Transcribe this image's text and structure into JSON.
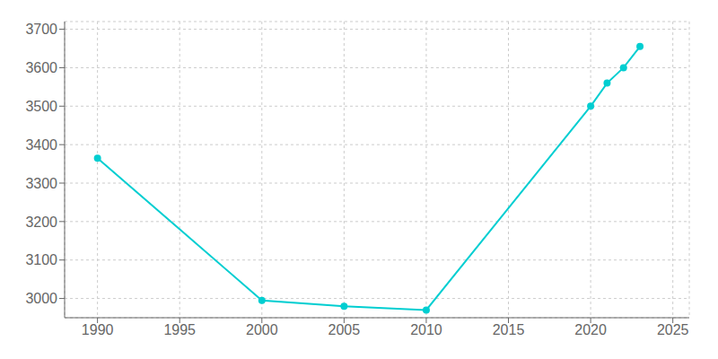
{
  "chart_data": {
    "type": "line",
    "x": [
      1990,
      2000,
      2005,
      2010,
      2020,
      2021,
      2022,
      2023
    ],
    "values": [
      3365,
      2995,
      2980,
      2970,
      3500,
      3560,
      3600,
      3655
    ],
    "color": "#00CED1",
    "marker": "circle",
    "xlim": [
      1988,
      2026
    ],
    "ylim": [
      2950,
      3720
    ],
    "xticks": [
      1990,
      1995,
      2000,
      2005,
      2010,
      2015,
      2020,
      2025
    ],
    "yticks": [
      3000,
      3100,
      3200,
      3300,
      3400,
      3500,
      3600,
      3700
    ],
    "grid": true
  }
}
